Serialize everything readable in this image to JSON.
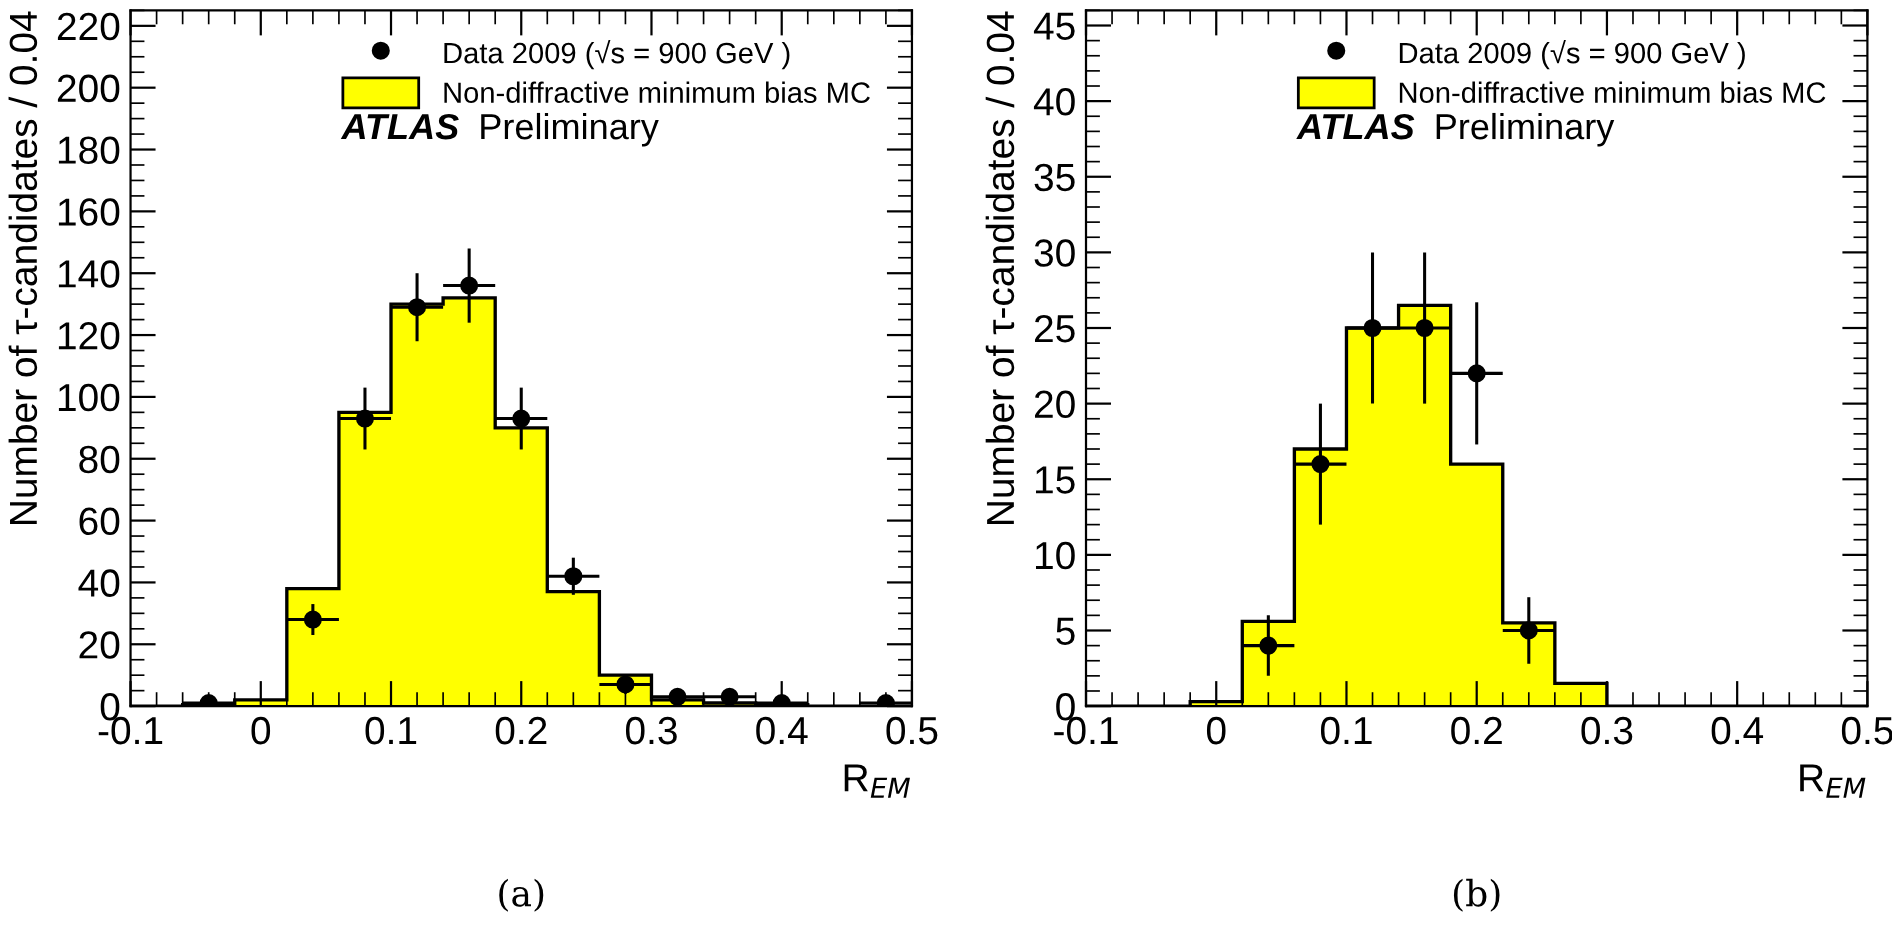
{
  "chart_data": [
    {
      "type": "histogram",
      "xlabel": "R$_{EM}$",
      "ylabel": "Number of τ-candidates / 0.04",
      "xlim": [
        -0.1,
        0.5
      ],
      "xticks": [
        -0.1,
        0,
        0.1,
        0.2,
        0.3,
        0.4,
        0.5
      ],
      "ylim": [
        0,
        225
      ],
      "yticks": [
        0,
        20,
        40,
        60,
        80,
        100,
        120,
        140,
        160,
        180,
        200,
        220
      ],
      "legend": "top right",
      "grid": false,
      "annotations": [
        "ATLAS",
        "Preliminary",
        "(a)"
      ],
      "series": [
        {
          "name": "Data 2009 (√s = 900 GeV )",
          "type": "scatter",
          "color": "#000000",
          "marker": "circle",
          "x": [
            -0.04,
            0.04,
            0.08,
            0.12,
            0.16,
            0.2,
            0.24,
            0.28,
            0.32,
            0.36,
            0.4,
            0.48
          ],
          "values": [
            1,
            28,
            93,
            129,
            136,
            93,
            42,
            7,
            3,
            3,
            1,
            1
          ],
          "errors": [
            1,
            5,
            10,
            11,
            12,
            10,
            6,
            3,
            2,
            2,
            1,
            1
          ],
          "xerrors": [
            0.02,
            0.02,
            0.02,
            0.02,
            0.02,
            0.02,
            0.02,
            0.02,
            0.02,
            0.02,
            0.02,
            0.02
          ]
        },
        {
          "name": "Non-diffractive minimum bias MC",
          "color": "#ffff00",
          "bins": [
            -0.1,
            -0.06,
            -0.02,
            0.02,
            0.06,
            0.1,
            0.14,
            0.18,
            0.22,
            0.26,
            0.3,
            0.34,
            0.38,
            0.42,
            0.46,
            0.5
          ],
          "values": [
            0,
            0.5,
            2,
            38,
            95,
            130,
            132,
            90,
            37,
            10,
            2,
            1,
            0.5,
            0,
            0
          ]
        }
      ]
    },
    {
      "type": "histogram",
      "xlabel": "R$_{EM}$",
      "ylabel": "Number of τ-candidates / 0.04",
      "xlim": [
        -0.1,
        0.5
      ],
      "xticks": [
        -0.1,
        0,
        0.1,
        0.2,
        0.3,
        0.4,
        0.5
      ],
      "ylim": [
        0,
        46
      ],
      "yticks": [
        0,
        5,
        10,
        15,
        20,
        25,
        30,
        35,
        40,
        45
      ],
      "legend": "top right",
      "grid": false,
      "annotations": [
        "ATLAS",
        "Preliminary",
        "(b)"
      ],
      "series": [
        {
          "name": "Data 2009 (√s = 900 GeV )",
          "type": "scatter",
          "color": "#000000",
          "marker": "circle",
          "x": [
            0.04,
            0.08,
            0.12,
            0.16,
            0.2,
            0.24
          ],
          "values": [
            4,
            16,
            25,
            25,
            22,
            5
          ],
          "errors": [
            2,
            4,
            5,
            5,
            4.7,
            2.2
          ],
          "xerrors": [
            0.02,
            0.02,
            0.02,
            0.02,
            0.02,
            0.02
          ]
        },
        {
          "name": "Non-diffractive minimum bias MC",
          "color": "#ffff00",
          "bins": [
            -0.1,
            -0.06,
            -0.02,
            0.02,
            0.06,
            0.1,
            0.14,
            0.18,
            0.22,
            0.26,
            0.3,
            0.34,
            0.38,
            0.42,
            0.46,
            0.5
          ],
          "values": [
            0,
            0,
            0.3,
            5.6,
            17,
            25,
            26.5,
            16,
            5.5,
            1.5,
            0,
            0,
            0,
            0,
            0
          ]
        }
      ]
    }
  ]
}
